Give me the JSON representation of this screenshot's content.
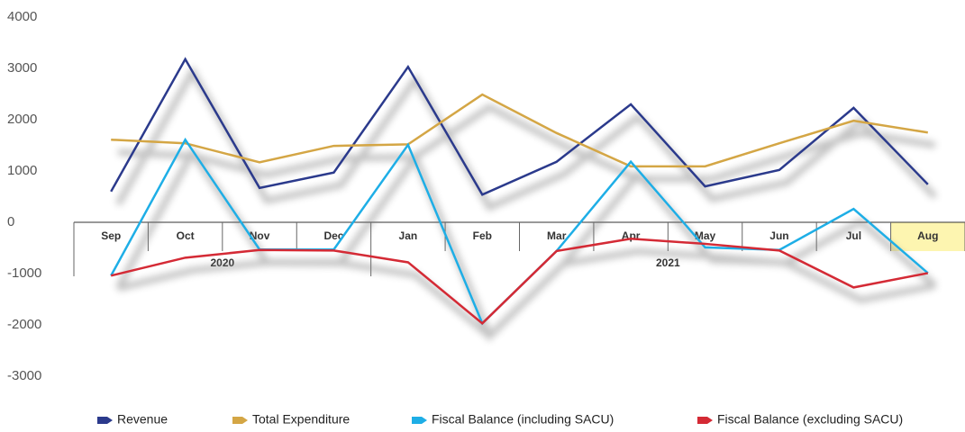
{
  "chart_data": {
    "type": "line",
    "categories": [
      "Sep",
      "Oct",
      "Nov",
      "Dec",
      "Jan",
      "Feb",
      "Mar",
      "Apr",
      "May",
      "Jun",
      "Jul",
      "Aug"
    ],
    "x_groups": [
      {
        "label": "2020",
        "span": 4
      },
      {
        "label": "2021",
        "span": 8
      }
    ],
    "highlight": 11,
    "ylim": [
      -3000,
      4000
    ],
    "yticks": [
      -3000,
      -2000,
      -1000,
      0,
      1000,
      2000,
      3000,
      4000
    ],
    "series": [
      {
        "name": "Revenue",
        "color": "#2b3a8c",
        "values": [
          600,
          3180,
          670,
          970,
          3030,
          540,
          1180,
          2300,
          700,
          1020,
          2230,
          740
        ]
      },
      {
        "name": "Total Expenditure",
        "color": "#d4a645",
        "values": [
          1610,
          1540,
          1170,
          1490,
          1520,
          2490,
          1740,
          1090,
          1090,
          1540,
          1980,
          1750
        ]
      },
      {
        "name": "Fiscal Balance (including SACU)",
        "color": "#1eaee6",
        "values": [
          -1040,
          1610,
          -530,
          -530,
          1510,
          -1970,
          -560,
          1180,
          -490,
          -540,
          260,
          -990
        ]
      },
      {
        "name": "Fiscal Balance (excluding SACU)",
        "color": "#d42a35",
        "values": [
          -1040,
          -690,
          -540,
          -550,
          -780,
          -1970,
          -560,
          -320,
          -420,
          -550,
          -1270,
          -990
        ]
      }
    ]
  }
}
